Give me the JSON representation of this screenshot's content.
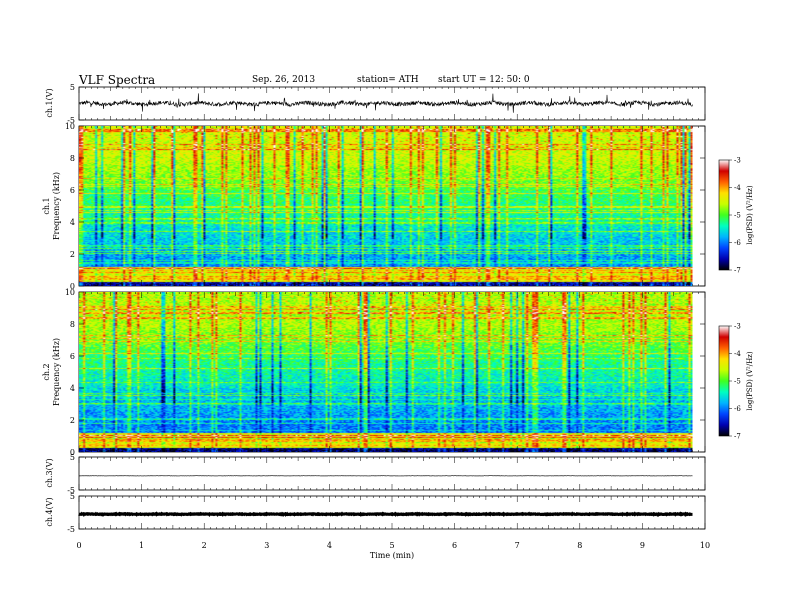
{
  "header": {
    "title": "VLF  Spectra",
    "date": "Sep. 26, 2013",
    "station": "station= ATH",
    "start": "start  UT =   12: 50: 0"
  },
  "colors": {
    "colormap": [
      "#000000",
      "#0000b0",
      "#0044ff",
      "#00b4ff",
      "#00ffc0",
      "#40ff20",
      "#c8ff00",
      "#ffe000",
      "#ff6000",
      "#d00000",
      "#ffffff"
    ]
  },
  "chart_data": [
    {
      "type": "line",
      "ylabel": "ch.1(V)",
      "ylim": [
        -5,
        5
      ],
      "yticks": [
        "5",
        "-5"
      ],
      "description_level": "noisy waveform centered near 0 V with amplitude about ±1 V and spikes to ±2.5 V",
      "center": 0,
      "amplitude": 1.0
    },
    {
      "type": "heatmap",
      "ylabel": "Frequency  (kHz)",
      "side_label": "ch.1",
      "ylim": [
        0,
        10
      ],
      "yticks": [
        "0",
        "2",
        "4",
        "6",
        "8",
        "10"
      ],
      "colorbar": {
        "label": "log(PSD) (V²/Hz)",
        "range": [
          -7,
          -3
        ],
        "ticks": [
          "-3",
          "-4",
          "-5",
          "-6",
          "-7"
        ]
      }
    },
    {
      "type": "heatmap",
      "ylabel": "Frequency  (kHz)",
      "side_label": "ch.2",
      "ylim": [
        0,
        10
      ],
      "yticks": [
        "0",
        "2",
        "4",
        "6",
        "8",
        "10"
      ],
      "colorbar": {
        "label": "log(PSD) (V²/Hz)",
        "range": [
          -7,
          -3
        ],
        "ticks": [
          "-3",
          "-4",
          "-5",
          "-6",
          "-7"
        ]
      }
    },
    {
      "type": "line",
      "ylabel": "ch.3(V)",
      "ylim": [
        -5,
        5
      ],
      "yticks": [
        "5",
        "-5"
      ],
      "center": -0.7,
      "amplitude": 0.05
    },
    {
      "type": "line",
      "ylabel": "ch.4(V)",
      "ylim": [
        -5,
        5
      ],
      "yticks": [
        "5",
        "-5"
      ],
      "center": -0.5,
      "amplitude": 0.15
    }
  ],
  "xaxis": {
    "label": "Time  (min)",
    "range": [
      0,
      10
    ],
    "data_end": 9.8,
    "ticks": [
      "0",
      "1",
      "2",
      "3",
      "4",
      "5",
      "6",
      "7",
      "8",
      "9",
      "10"
    ]
  }
}
